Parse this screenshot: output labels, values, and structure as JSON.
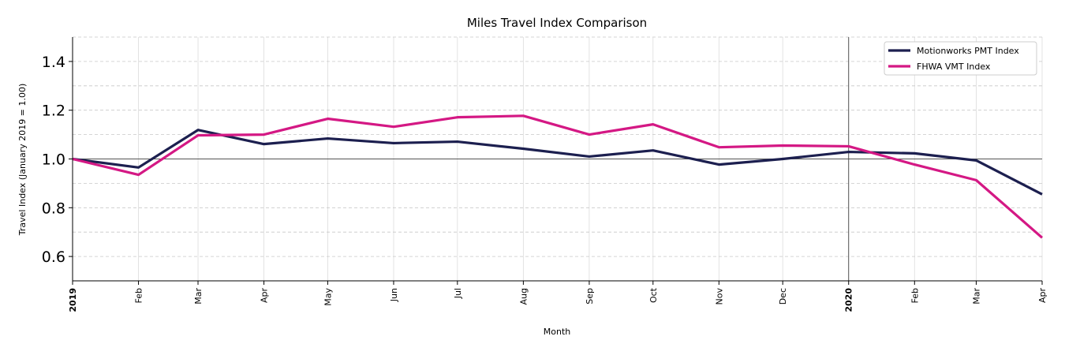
{
  "chart_data": {
    "type": "line",
    "title": "Miles Travel Index Comparison",
    "xlabel": "Month",
    "ylabel": "Travel Index (January 2019 = 1.00)",
    "ylim": [
      0.5,
      1.5
    ],
    "yticks": [
      "0.6",
      "0.8",
      "1.0",
      "1.2",
      "1.4"
    ],
    "ytick_values": [
      0.6,
      0.8,
      1.0,
      1.2,
      1.4
    ],
    "x": [
      "2019-01",
      "2019-02",
      "2019-03",
      "2019-04",
      "2019-05",
      "2019-06",
      "2019-07",
      "2019-08",
      "2019-09",
      "2019-10",
      "2019-11",
      "2019-12",
      "2020-01",
      "2020-02",
      "2020-03",
      "2020-04"
    ],
    "xtick_labels": [
      "2019",
      "Feb",
      "Mar",
      "Apr",
      "May",
      "Jun",
      "Jul",
      "Aug",
      "Sep",
      "Oct",
      "Nov",
      "Dec",
      "2020",
      "Feb",
      "Mar",
      "Apr"
    ],
    "grid": true,
    "reference_line_y": 1.0,
    "reference_line_x": "2020-01",
    "legend_position": "top-right",
    "series": [
      {
        "name": "Motionworks PMT Index",
        "color": "#1c1f4f",
        "values": [
          1.0,
          0.965,
          1.119,
          1.061,
          1.084,
          1.065,
          1.071,
          1.042,
          1.01,
          1.035,
          0.977,
          1.0,
          1.029,
          1.023,
          0.994,
          0.855
        ]
      },
      {
        "name": "FHWA VMT Index",
        "color": "#d41884",
        "values": [
          1.0,
          0.935,
          1.097,
          1.1,
          1.165,
          1.132,
          1.171,
          1.177,
          1.1,
          1.142,
          1.048,
          1.055,
          1.052,
          0.977,
          0.913,
          0.677
        ]
      }
    ]
  }
}
